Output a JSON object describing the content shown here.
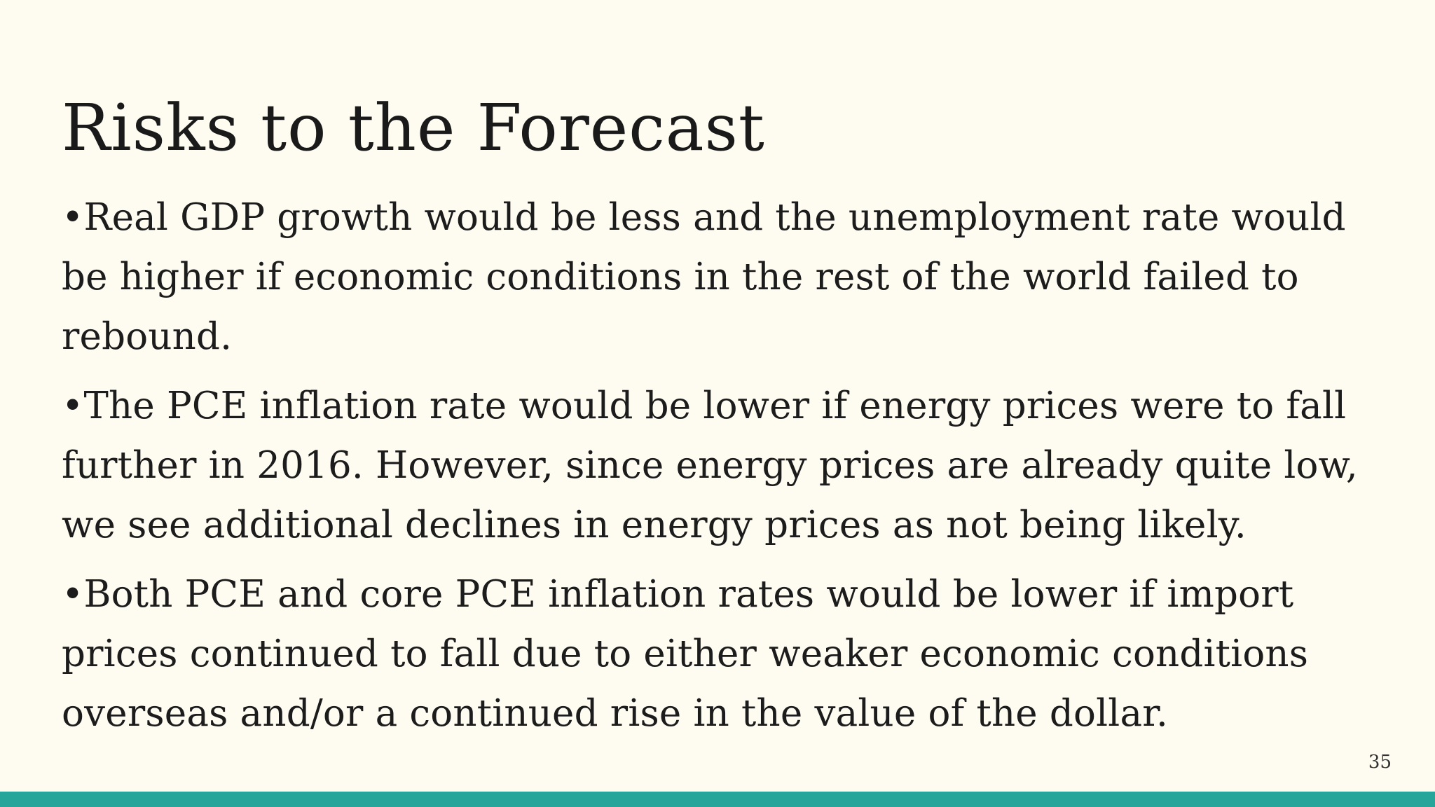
{
  "slide": {
    "title": "Risks to the Forecast",
    "bullets": [
      {
        "lines": [
          "•Real GDP growth would be less and the unemployment rate would",
          "be higher if economic conditions in the rest of the world failed to",
          "rebound."
        ]
      },
      {
        "lines": [
          "•The PCE inflation rate would be lower if energy prices were to fall",
          "further in 2016.  However, since energy prices are already quite low,",
          "we see additional declines in energy prices as not being likely."
        ]
      },
      {
        "lines": [
          "•Both PCE and core PCE inflation rates would be lower if import",
          "prices continued to fall due to either weaker economic conditions",
          "overseas and/or a continued rise in the value of the dollar."
        ]
      }
    ],
    "page_number": "35"
  },
  "colors": {
    "background": "#fefbf0",
    "text": "#1c1c1c",
    "accent_bar": "#26a69a"
  }
}
